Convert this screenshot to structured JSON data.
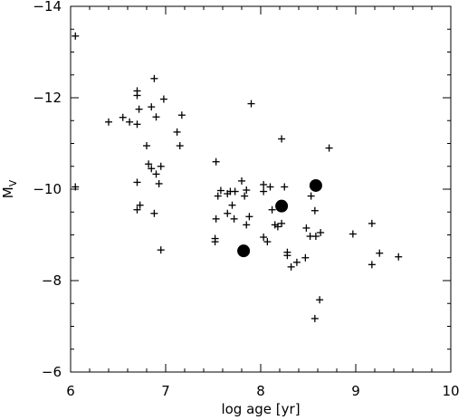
{
  "chart_data": {
    "type": "scatter",
    "title": "",
    "xlabel": "log age [yr]",
    "ylabel": "M",
    "ylabel_sub": "V",
    "xlim": [
      6,
      10
    ],
    "ylim": [
      -6,
      -14
    ],
    "x_ticks": [
      6,
      7,
      8,
      9,
      10
    ],
    "x_tick_labels": [
      "6",
      "7",
      "8",
      "9",
      "10"
    ],
    "y_ticks": [
      -6,
      -8,
      -10,
      -12,
      -14
    ],
    "y_tick_labels": [
      "−6",
      "−8",
      "−10",
      "−12",
      "−14"
    ],
    "x_minor_step": 0.2,
    "y_minor_step": 0.5,
    "grid": false,
    "legend": "none",
    "colors": {
      "marker": "#000000",
      "axes": "#000000",
      "background": "#ffffff"
    },
    "series": [
      {
        "marker": "plus",
        "points": [
          [
            6.05,
            -13.35
          ],
          [
            6.05,
            -10.05
          ],
          [
            6.4,
            -11.47
          ],
          [
            6.55,
            -11.57
          ],
          [
            6.62,
            -11.47
          ],
          [
            6.7,
            -12.15
          ],
          [
            6.7,
            -12.05
          ],
          [
            6.72,
            -11.75
          ],
          [
            6.7,
            -11.42
          ],
          [
            6.7,
            -10.15
          ],
          [
            6.73,
            -9.65
          ],
          [
            6.7,
            -9.55
          ],
          [
            6.8,
            -10.95
          ],
          [
            6.82,
            -10.55
          ],
          [
            6.85,
            -10.45
          ],
          [
            6.85,
            -11.8
          ],
          [
            6.88,
            -12.42
          ],
          [
            6.9,
            -11.58
          ],
          [
            6.9,
            -10.33
          ],
          [
            6.93,
            -10.12
          ],
          [
            6.95,
            -10.5
          ],
          [
            6.98,
            -11.97
          ],
          [
            6.88,
            -9.47
          ],
          [
            6.95,
            -8.67
          ],
          [
            7.12,
            -11.25
          ],
          [
            7.17,
            -11.62
          ],
          [
            7.15,
            -10.95
          ],
          [
            7.53,
            -10.6
          ],
          [
            7.55,
            -9.85
          ],
          [
            7.58,
            -9.97
          ],
          [
            7.53,
            -9.35
          ],
          [
            7.52,
            -8.92
          ],
          [
            7.52,
            -8.85
          ],
          [
            7.65,
            -9.9
          ],
          [
            7.68,
            -9.95
          ],
          [
            7.7,
            -9.65
          ],
          [
            7.73,
            -9.95
          ],
          [
            7.8,
            -10.18
          ],
          [
            7.83,
            -9.85
          ],
          [
            7.85,
            -9.98
          ],
          [
            7.65,
            -9.47
          ],
          [
            7.72,
            -9.35
          ],
          [
            7.85,
            -9.22
          ],
          [
            7.88,
            -9.4
          ],
          [
            7.9,
            -11.87
          ],
          [
            8.03,
            -10.1
          ],
          [
            8.03,
            -9.95
          ],
          [
            8.1,
            -10.05
          ],
          [
            8.03,
            -8.95
          ],
          [
            8.07,
            -8.85
          ],
          [
            8.12,
            -9.55
          ],
          [
            8.15,
            -9.22
          ],
          [
            8.18,
            -9.18
          ],
          [
            8.22,
            -11.1
          ],
          [
            8.22,
            -9.25
          ],
          [
            8.25,
            -10.05
          ],
          [
            8.28,
            -8.62
          ],
          [
            8.28,
            -8.55
          ],
          [
            8.32,
            -8.3
          ],
          [
            8.38,
            -8.4
          ],
          [
            8.47,
            -8.5
          ],
          [
            8.48,
            -9.15
          ],
          [
            8.52,
            -8.97
          ],
          [
            8.53,
            -9.85
          ],
          [
            8.57,
            -9.53
          ],
          [
            8.58,
            -8.97
          ],
          [
            8.57,
            -7.17
          ],
          [
            8.63,
            -9.05
          ],
          [
            8.62,
            -7.58
          ],
          [
            8.72,
            -10.9
          ],
          [
            8.97,
            -9.02
          ],
          [
            9.17,
            -9.25
          ],
          [
            9.17,
            -8.35
          ],
          [
            9.25,
            -8.6
          ],
          [
            9.45,
            -8.52
          ]
        ]
      },
      {
        "marker": "filled-circle",
        "points": [
          [
            7.82,
            -8.65
          ],
          [
            8.22,
            -9.63
          ],
          [
            8.58,
            -10.08
          ]
        ]
      }
    ]
  }
}
